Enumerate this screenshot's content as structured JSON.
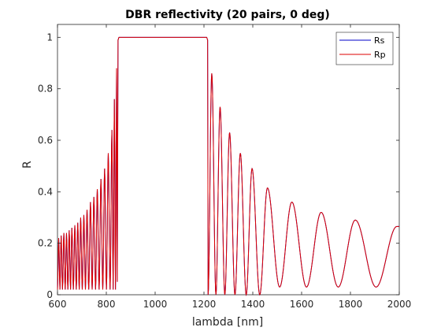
{
  "chart_data": {
    "type": "line",
    "title": "DBR reflectivity (20 pairs, 0 deg)",
    "xlabel": "lambda [nm]",
    "ylabel": "R",
    "xlim": [
      600,
      2000
    ],
    "ylim": [
      0,
      1.05
    ],
    "grid": false,
    "legend_placement": "top-right",
    "x_ticks": [
      600,
      800,
      1000,
      1200,
      1400,
      1600,
      1800,
      2000
    ],
    "x_tick_labels": [
      "600",
      "800",
      "1000",
      "1200",
      "1400",
      "1600",
      "1800",
      "2000"
    ],
    "y_ticks": [
      0,
      0.2,
      0.4,
      0.6,
      0.8,
      1
    ],
    "y_tick_labels": [
      "0",
      "0.2",
      "0.4",
      "0.6",
      "0.8",
      "1"
    ],
    "stopband_nm": [
      848,
      1215
    ],
    "sidelobe_peaks": [
      [
        605,
        0.22
      ],
      [
        615,
        0.23
      ],
      [
        626,
        0.24
      ],
      [
        637,
        0.24
      ],
      [
        648,
        0.25
      ],
      [
        659,
        0.26
      ],
      [
        671,
        0.27
      ],
      [
        683,
        0.28
      ],
      [
        695,
        0.3
      ],
      [
        708,
        0.31
      ],
      [
        721,
        0.33
      ],
      [
        735,
        0.36
      ],
      [
        749,
        0.38
      ],
      [
        763,
        0.41
      ],
      [
        778,
        0.45
      ],
      [
        793,
        0.49
      ],
      [
        808,
        0.55
      ],
      [
        823,
        0.64
      ],
      [
        833,
        0.76
      ],
      [
        842,
        0.88
      ],
      [
        1232,
        0.86
      ],
      [
        1266,
        0.73
      ],
      [
        1305,
        0.63
      ],
      [
        1349,
        0.55
      ],
      [
        1397,
        0.49
      ],
      [
        1460,
        0.415
      ],
      [
        1560,
        0.36
      ],
      [
        1680,
        0.32
      ],
      [
        1820,
        0.29
      ],
      [
        1990,
        0.265
      ]
    ],
    "series": [
      {
        "name": "Rs",
        "color": "#0000c8"
      },
      {
        "name": "Rp",
        "color": "#dd0000"
      }
    ]
  }
}
